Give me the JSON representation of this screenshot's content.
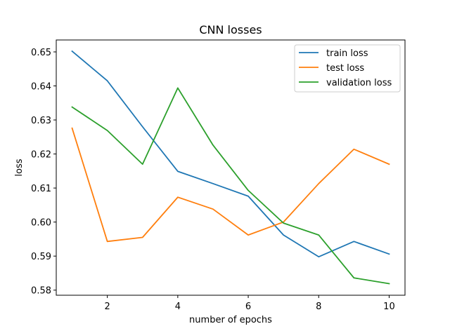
{
  "chart_data": {
    "type": "line",
    "title": "CNN losses",
    "xlabel": "number of epochs",
    "ylabel": "loss",
    "xlim": [
      0.55,
      10.45
    ],
    "ylim": [
      0.5785,
      0.6535
    ],
    "xticks": [
      2,
      4,
      6,
      8,
      10
    ],
    "yticks": [
      0.58,
      0.59,
      0.6,
      0.61,
      0.62,
      0.63,
      0.64,
      0.65
    ],
    "ytick_labels": [
      "0.58",
      "0.59",
      "0.60",
      "0.61",
      "0.62",
      "0.63",
      "0.64",
      "0.65"
    ],
    "grid": false,
    "legend_position": "top-right",
    "x": [
      1,
      2,
      3,
      4,
      5,
      6,
      7,
      8,
      9,
      10
    ],
    "series": [
      {
        "name": "train loss",
        "color": "#1f77b4",
        "values": [
          0.6502,
          0.6415,
          0.628,
          0.6149,
          0.6113,
          0.6076,
          0.5962,
          0.5898,
          0.5943,
          0.5906
        ]
      },
      {
        "name": "test loss",
        "color": "#ff7f0e",
        "values": [
          0.6276,
          0.5943,
          0.5955,
          0.6073,
          0.6038,
          0.5962,
          0.6,
          0.6113,
          0.6214,
          0.617
        ]
      },
      {
        "name": "validation loss",
        "color": "#2ca02c",
        "values": [
          0.6338,
          0.6269,
          0.617,
          0.6394,
          0.6226,
          0.6093,
          0.5997,
          0.5962,
          0.5836,
          0.5819
        ]
      }
    ]
  }
}
